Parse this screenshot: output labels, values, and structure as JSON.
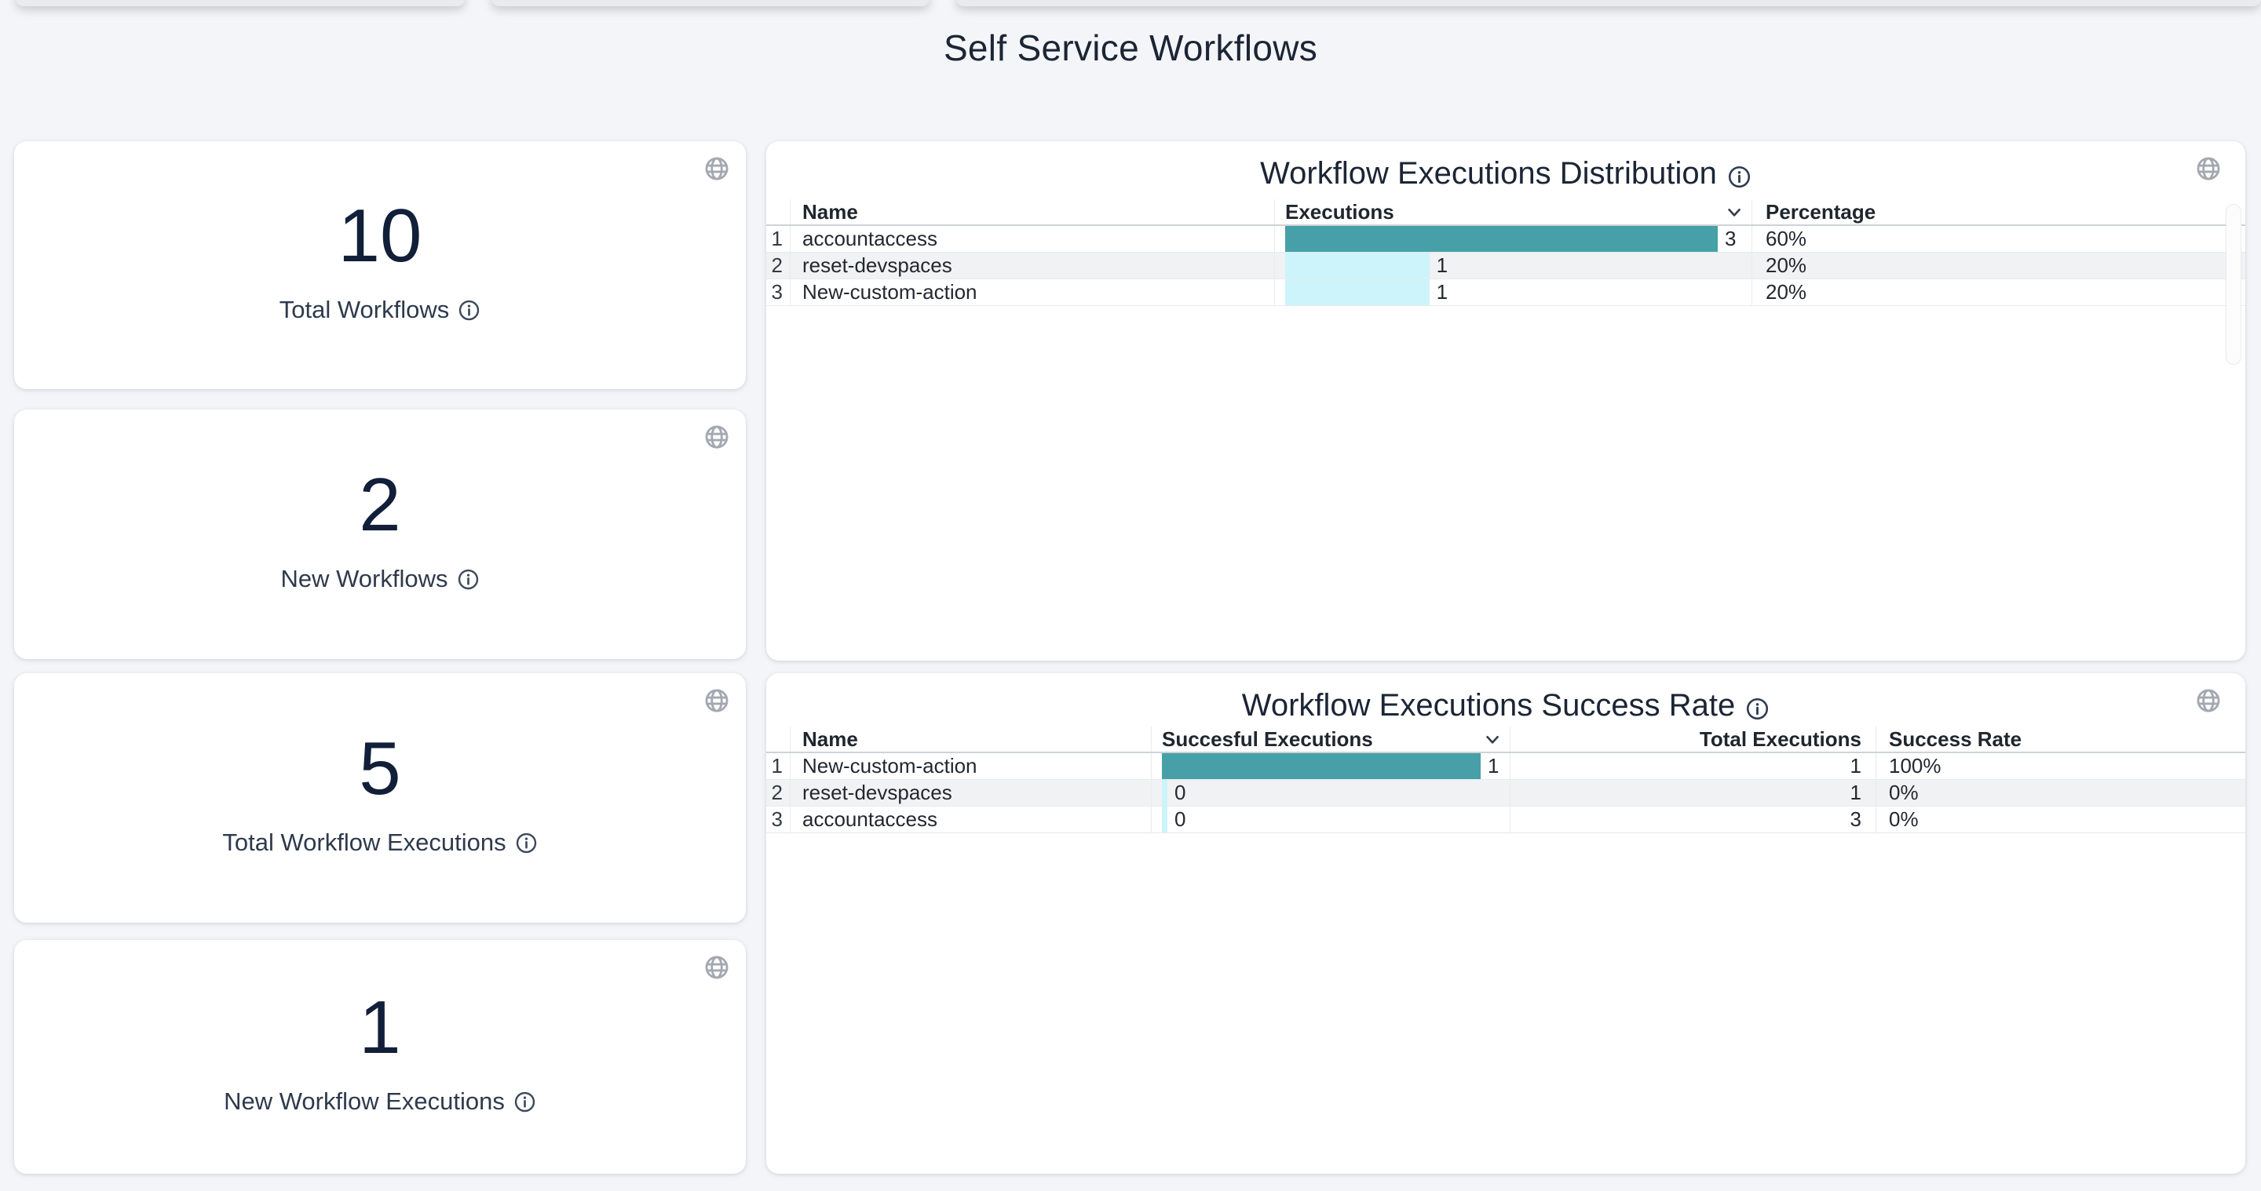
{
  "page": {
    "title": "Self Service Workflows"
  },
  "stat_cards": [
    {
      "value": "10",
      "label": "Total Workflows"
    },
    {
      "value": "2",
      "label": "New Workflows"
    },
    {
      "value": "5",
      "label": "Total Workflow Executions"
    },
    {
      "value": "1",
      "label": "New Workflow Executions"
    }
  ],
  "distribution_table": {
    "title": "Workflow Executions Distribution",
    "columns": [
      "Name",
      "Executions",
      "Percentage"
    ],
    "rows": [
      {
        "index": "1",
        "name": "accountaccess",
        "executions": 3,
        "percentage": "60%"
      },
      {
        "index": "2",
        "name": "reset-devspaces",
        "executions": 1,
        "percentage": "20%"
      },
      {
        "index": "3",
        "name": "New-custom-action",
        "executions": 1,
        "percentage": "20%"
      }
    ]
  },
  "success_table": {
    "title": "Workflow Executions Success Rate",
    "columns": [
      "Name",
      "Succesful Executions",
      "Total Executions",
      "Success Rate"
    ],
    "rows": [
      {
        "index": "1",
        "name": "New-custom-action",
        "successful": 1,
        "total": 1,
        "rate": "100%"
      },
      {
        "index": "2",
        "name": "reset-devspaces",
        "successful": 0,
        "total": 1,
        "rate": "0%"
      },
      {
        "index": "3",
        "name": "accountaccess",
        "successful": 0,
        "total": 3,
        "rate": "0%"
      }
    ]
  },
  "chart_data": [
    {
      "type": "bar",
      "title": "Workflow Executions Distribution",
      "categories": [
        "accountaccess",
        "reset-devspaces",
        "New-custom-action"
      ],
      "values": [
        3,
        1,
        1
      ],
      "percentages": [
        "60%",
        "20%",
        "20%"
      ],
      "xlabel": "Executions",
      "ylabel": "Name"
    },
    {
      "type": "bar",
      "title": "Workflow Executions Success Rate",
      "categories": [
        "New-custom-action",
        "reset-devspaces",
        "accountaccess"
      ],
      "series": [
        {
          "name": "Succesful Executions",
          "values": [
            1,
            0,
            0
          ]
        },
        {
          "name": "Total Executions",
          "values": [
            1,
            1,
            3
          ]
        }
      ],
      "success_rates": [
        "100%",
        "0%",
        "0%"
      ]
    }
  ],
  "colors": {
    "bar_high": "#47a0a7",
    "bar_low": "#cdf4fa",
    "page_bg": "#f4f5f8",
    "title_text": "#1b2535",
    "icon_gray": "#a3a8b1"
  }
}
